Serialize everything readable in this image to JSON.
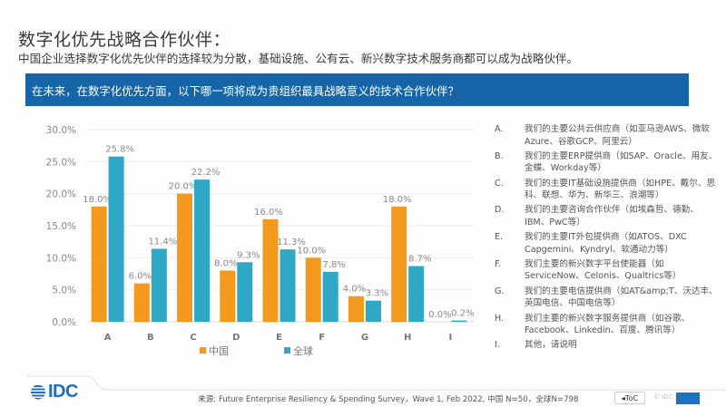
{
  "header": {
    "title": "数字化优先战略合作伙伴：",
    "subtitle": "中国企业选择数字化优先伙伴的选择较为分散，基础设施、公有云、新兴数字技术服务商都可以成为战略伙伴。"
  },
  "question": "在未来，在数字化优先方面，以下哪一项将成为贵组织最具战略意义的技术合作伙伴？",
  "legend_items": [
    {
      "key": "A.",
      "text": "我们的主要公共云供应商（如亚马逊AWS、微软Azure、谷歌GCP、阿里云）"
    },
    {
      "key": "B.",
      "text": "我们的主要ERP提供商（如SAP、Oracle、用友、金蝶、Workday等）"
    },
    {
      "key": "C.",
      "text": "我们的主要IT基础设施提供商（如HPE、戴尔、思科、联想、华为、新华三、浪潮等）"
    },
    {
      "key": "D.",
      "text": "我们的主要咨询合作伙伴（如埃森哲、德勤、IBM、PwC等）"
    },
    {
      "key": "E.",
      "text": "我们的主要IT外包提供商（如ATOS、DXC Capgemini、Kyndryl、软通动力等）"
    },
    {
      "key": "F.",
      "text": "我们主要的新兴数字平台使能器（如ServiceNow、Celonis、Qualtrics等）"
    },
    {
      "key": "G.",
      "text": "我们的主要电信提供商（如AT&amp;T、沃达丰、英国电信、中国电信等）"
    },
    {
      "key": "H.",
      "text": "我们主要的新兴数字服务提供商（如谷歌、Facebook、Linkedin、百度、腾讯等）"
    },
    {
      "key": "I.",
      "text": "其他，请说明"
    }
  ],
  "chart_data": {
    "type": "bar",
    "title": "",
    "xlabel": "",
    "ylabel": "",
    "categories": [
      "A",
      "B",
      "C",
      "D",
      "E",
      "F",
      "G",
      "H",
      "I"
    ],
    "series": [
      {
        "name": "中国",
        "color": "#f39a1e",
        "values": [
          18.0,
          6.0,
          20.0,
          8.0,
          16.0,
          10.0,
          4.0,
          18.0,
          0.0
        ]
      },
      {
        "name": "全球",
        "color": "#2ea8c4",
        "values": [
          25.8,
          11.4,
          22.2,
          9.3,
          11.3,
          7.8,
          3.3,
          8.7,
          0.2
        ]
      }
    ],
    "ylim": [
      0,
      30
    ],
    "yticks": [
      0,
      5,
      10,
      15,
      20,
      25,
      30
    ],
    "ytick_labels": [
      "0.0%",
      "5.0%",
      "10.0%",
      "15.0%",
      "20.0%",
      "25.0%",
      "30.0%"
    ],
    "grid": true,
    "legend_position": "bottom",
    "value_suffix": "%"
  },
  "footer": {
    "logo": "IDC",
    "source": "来源: Future Enterprise Resiliency & Spending Survey，Wave 1, Feb 2022, 中国 N=50，全球N=798",
    "toc_label": "◂ToC",
    "copyright": "© IDC |"
  }
}
